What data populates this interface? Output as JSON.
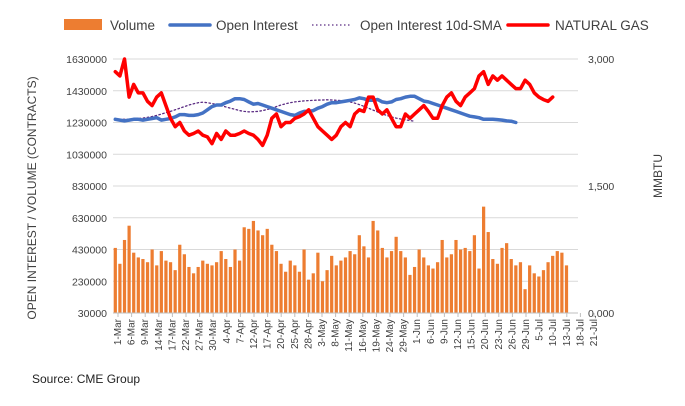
{
  "legend": [
    {
      "label": "Volume",
      "color": "#ED7D31",
      "style": "bar"
    },
    {
      "label": "Open Interest",
      "color": "#4472C4",
      "style": "line"
    },
    {
      "label": "Open Interest 10d-SMA",
      "color": "#5B2C83",
      "style": "dotted"
    },
    {
      "label": "NATURAL GAS",
      "color": "#FF0000",
      "style": "line"
    }
  ],
  "source": "Source: CME Group",
  "chart_data": {
    "type": "bar",
    "ylabel": "OPEN INTEREST / VOLUME (CONTRACTS)",
    "y2label": "MMBTU",
    "ylim": [
      30000,
      1630000
    ],
    "yticks": [
      "1630000",
      "1430000",
      "1230000",
      "1030000",
      "830000",
      "630000",
      "430000",
      "230000",
      "30000"
    ],
    "y2lim": [
      0,
      3.0
    ],
    "y2ticks": [
      "3,000",
      "1,500",
      "0,000"
    ],
    "xticks": [
      "1-Mar",
      "6-Mar",
      "9-Mar",
      "14-Mar",
      "17-Mar",
      "22-Mar",
      "27-Mar",
      "30-Mar",
      "4-Apr",
      "7-Apr",
      "12-Apr",
      "17-Apr",
      "20-Apr",
      "25-Apr",
      "28-Apr",
      "3-May",
      "8-May",
      "11-May",
      "16-May",
      "19-May",
      "24-May",
      "29-May",
      "1-Jun",
      "6-Jun",
      "9-Jun",
      "12-Jun",
      "15-Jun",
      "20-Jun",
      "23-Jun",
      "26-Jun",
      "29-Jun",
      "5-Jul",
      "10-Jul",
      "13-Jul",
      "18-Jul",
      "21-Jul"
    ],
    "x_range": [
      0,
      101
    ],
    "legend_position": "top",
    "grid": "horizontal",
    "series": [
      {
        "name": "Volume",
        "axis": "left",
        "values": [
          440000,
          340000,
          490000,
          580000,
          410000,
          380000,
          370000,
          350000,
          430000,
          330000,
          420000,
          360000,
          350000,
          300000,
          460000,
          400000,
          320000,
          280000,
          320000,
          360000,
          340000,
          330000,
          350000,
          420000,
          370000,
          320000,
          430000,
          360000,
          570000,
          560000,
          610000,
          550000,
          520000,
          560000,
          460000,
          420000,
          340000,
          290000,
          360000,
          330000,
          290000,
          430000,
          240000,
          280000,
          410000,
          230000,
          300000,
          390000,
          330000,
          360000,
          380000,
          420000,
          400000,
          520000,
          450000,
          380000,
          610000,
          550000,
          440000,
          380000,
          420000,
          510000,
          420000,
          380000,
          270000,
          320000,
          430000,
          380000,
          330000,
          310000,
          350000,
          490000,
          380000,
          400000,
          490000,
          430000,
          440000,
          420000,
          520000,
          310000,
          700000,
          540000,
          370000,
          340000,
          440000,
          470000,
          370000,
          330000,
          350000,
          180000,
          330000,
          280000,
          260000,
          300000,
          350000,
          390000,
          420000,
          410000,
          330000
        ],
        "x_start": 0
      },
      {
        "name": "Open Interest",
        "axis": "left",
        "values": [
          1250000,
          1245000,
          1240000,
          1245000,
          1250000,
          1250000,
          1245000,
          1250000,
          1255000,
          1260000,
          1245000,
          1250000,
          1255000,
          1265000,
          1280000,
          1280000,
          1275000,
          1275000,
          1280000,
          1290000,
          1310000,
          1330000,
          1340000,
          1340000,
          1355000,
          1365000,
          1380000,
          1380000,
          1375000,
          1360000,
          1345000,
          1350000,
          1340000,
          1330000,
          1320000,
          1310000,
          1300000,
          1290000,
          1280000,
          1275000,
          1290000,
          1300000,
          1300000,
          1305000,
          1320000,
          1330000,
          1345000,
          1355000,
          1355000,
          1360000,
          1365000,
          1370000,
          1375000,
          1385000,
          1380000,
          1370000,
          1370000,
          1375000,
          1360000,
          1355000,
          1360000,
          1375000,
          1380000,
          1390000,
          1395000,
          1395000,
          1380000,
          1365000,
          1360000,
          1350000,
          1340000,
          1330000,
          1320000,
          1310000,
          1300000,
          1290000,
          1280000,
          1270000,
          1265000,
          1260000,
          1250000,
          1250000,
          1250000,
          1248000,
          1245000,
          1240000,
          1238000,
          1230000
        ],
        "x_start": 0
      },
      {
        "name": "Open Interest 10d-SMA",
        "axis": "left",
        "values": [
          1250000,
          1250000,
          1250000,
          1250000,
          1252000,
          1255000,
          1258000,
          1262000,
          1268000,
          1275000,
          1283000,
          1292000,
          1300000,
          1310000,
          1320000,
          1330000,
          1340000,
          1348000,
          1355000,
          1358000,
          1355000,
          1350000,
          1343000,
          1336000,
          1328000,
          1320000,
          1313000,
          1305000,
          1300000,
          1297000,
          1298000,
          1300000,
          1305000,
          1312000,
          1320000,
          1330000,
          1340000,
          1348000,
          1355000,
          1360000,
          1363000,
          1366000,
          1368000,
          1370000,
          1371000,
          1372000,
          1373000,
          1372000,
          1370000,
          1368000,
          1365000,
          1360000,
          1352000,
          1343000,
          1332000,
          1320000,
          1308000,
          1296000,
          1284000,
          1274000,
          1265000,
          1258000,
          1252000,
          1247000,
          1242000,
          1238000
        ],
        "x_start": 0
      },
      {
        "name": "NATURAL GAS",
        "axis": "right",
        "values": [
          2.85,
          2.8,
          3.0,
          2.55,
          2.7,
          2.6,
          2.6,
          2.5,
          2.45,
          2.55,
          2.6,
          2.45,
          2.3,
          2.2,
          2.25,
          2.15,
          2.1,
          2.12,
          2.15,
          2.1,
          2.08,
          2.0,
          2.12,
          2.05,
          2.15,
          2.1,
          2.1,
          2.12,
          2.15,
          2.12,
          2.1,
          2.05,
          1.98,
          2.1,
          2.3,
          2.35,
          2.2,
          2.25,
          2.25,
          2.3,
          2.32,
          2.35,
          2.4,
          2.3,
          2.2,
          2.15,
          2.1,
          2.05,
          2.1,
          2.2,
          2.25,
          2.2,
          2.35,
          2.4,
          2.38,
          2.55,
          2.55,
          2.4,
          2.35,
          2.4,
          2.3,
          2.2,
          2.2,
          2.35,
          2.3,
          2.35,
          2.4,
          2.45,
          2.38,
          2.3,
          2.3,
          2.45,
          2.55,
          2.6,
          2.5,
          2.45,
          2.55,
          2.6,
          2.65,
          2.8,
          2.85,
          2.7,
          2.8,
          2.75,
          2.8,
          2.75,
          2.7,
          2.65,
          2.65,
          2.75,
          2.7,
          2.6,
          2.55,
          2.52,
          2.5,
          2.55
        ],
        "x_start": 0
      }
    ]
  }
}
